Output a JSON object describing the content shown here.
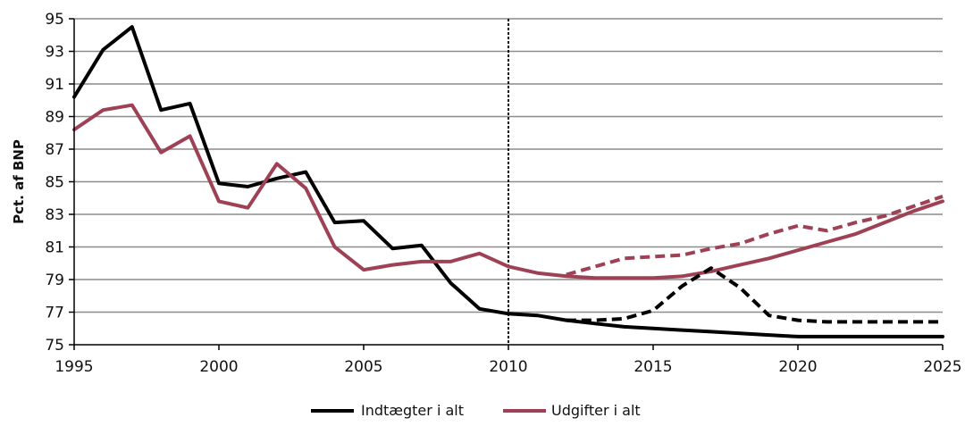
{
  "chart_data": {
    "type": "line",
    "title": "",
    "xlabel": "",
    "ylabel": "Pct. af BNP",
    "xlim": [
      1995,
      2025
    ],
    "ylim": [
      75,
      95
    ],
    "xticks": [
      1995,
      2000,
      2005,
      2010,
      2015,
      2020,
      2025
    ],
    "yticks": [
      75,
      77,
      79,
      81,
      83,
      85,
      87,
      89,
      91,
      93,
      95
    ],
    "grid": "horizontal",
    "vertical_marker": {
      "x": 2010,
      "style": "dotted"
    },
    "legend_position": "bottom-center",
    "colors": {
      "revenue": "#000000",
      "expenditure": "#9e4155",
      "grid": "#8c8c8c"
    },
    "series": [
      {
        "name": "Indtægter i alt",
        "style": "solid",
        "x": [
          1995,
          1996,
          1997,
          1998,
          1999,
          2000,
          2001,
          2002,
          2003,
          2004,
          2005,
          2006,
          2007,
          2008,
          2009,
          2010,
          2011,
          2012,
          2013,
          2014,
          2015,
          2016,
          2017,
          2018,
          2019,
          2020,
          2021,
          2022,
          2023,
          2024,
          2025
        ],
        "values": [
          90.2,
          93.1,
          94.5,
          89.4,
          89.8,
          84.9,
          84.7,
          85.2,
          85.6,
          82.5,
          82.6,
          80.9,
          81.1,
          78.8,
          77.2,
          76.9,
          76.8,
          76.5,
          76.3,
          76.1,
          76.0,
          75.9,
          75.8,
          75.7,
          75.6,
          75.5,
          75.5,
          75.5,
          75.5,
          75.5,
          75.5
        ]
      },
      {
        "name": "Udgifter i alt",
        "style": "solid",
        "x": [
          1995,
          1996,
          1997,
          1998,
          1999,
          2000,
          2001,
          2002,
          2003,
          2004,
          2005,
          2006,
          2007,
          2008,
          2009,
          2010,
          2011,
          2012,
          2013,
          2014,
          2015,
          2016,
          2017,
          2018,
          2019,
          2020,
          2021,
          2022,
          2023,
          2024,
          2025
        ],
        "values": [
          88.2,
          89.4,
          89.7,
          86.8,
          87.8,
          83.8,
          83.4,
          86.1,
          84.6,
          81.0,
          79.6,
          79.9,
          80.1,
          80.1,
          80.6,
          79.8,
          79.4,
          79.2,
          79.1,
          79.1,
          79.1,
          79.2,
          79.5,
          79.9,
          80.3,
          80.8,
          81.3,
          81.8,
          82.5,
          83.2,
          83.8
        ]
      },
      {
        "name": "",
        "style": "dashed",
        "color_key": "revenue",
        "x": [
          2012,
          2013,
          2014,
          2015,
          2016,
          2017,
          2018,
          2019,
          2020,
          2021,
          2022,
          2023,
          2024,
          2025
        ],
        "values": [
          76.5,
          76.5,
          76.6,
          77.1,
          78.6,
          79.7,
          78.5,
          76.8,
          76.5,
          76.4,
          76.4,
          76.4,
          76.4,
          76.4
        ]
      },
      {
        "name": "",
        "style": "dashed",
        "color_key": "expenditure",
        "x": [
          2012,
          2013,
          2014,
          2015,
          2016,
          2017,
          2018,
          2019,
          2020,
          2021,
          2022,
          2023,
          2024,
          2025
        ],
        "values": [
          79.3,
          79.8,
          80.3,
          80.4,
          80.5,
          80.9,
          81.2,
          81.8,
          82.3,
          82.0,
          82.5,
          82.9,
          83.5,
          84.1
        ]
      }
    ],
    "legend": [
      {
        "label": "Indtægter i alt",
        "color_key": "revenue"
      },
      {
        "label": "Udgifter i alt",
        "color_key": "expenditure"
      }
    ]
  }
}
